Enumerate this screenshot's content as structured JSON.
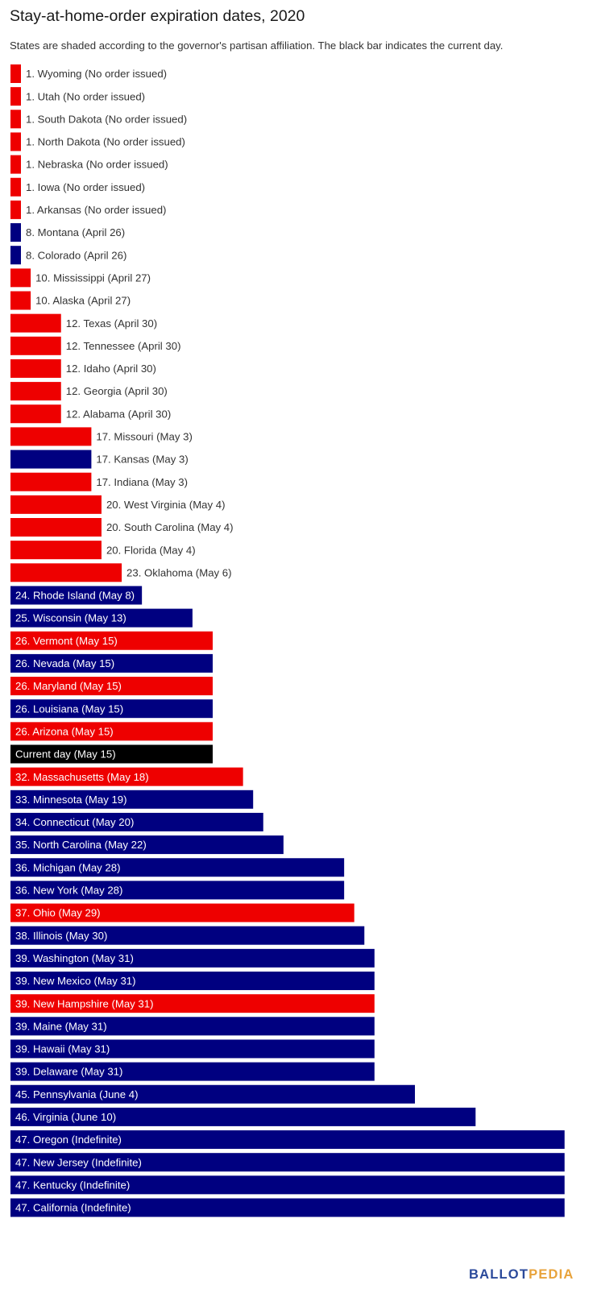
{
  "title": "Stay-at-home-order expiration dates, 2020",
  "subtitle": "States are shaded according to the governor's partisan affiliation. The black bar indicates the current day.",
  "logo": {
    "part1": "BALLOT",
    "part2": "PEDIA"
  },
  "colors": {
    "republican": "#ee0000",
    "democrat": "#000080",
    "current_day": "#000000",
    "label_inside": "#ffffff",
    "label_outside": "#333333",
    "logo_blue": "#2b4a9b",
    "logo_orange": "#e8a33b"
  },
  "chart_data": {
    "type": "bar",
    "orientation": "horizontal",
    "x_axis": "expiration date (April 25 = 0 days); Indefinite shown at full width",
    "legend": "none",
    "grid": false,
    "bars": [
      {
        "label": "1. Wyoming (No order issued)",
        "days": 0,
        "party": "R"
      },
      {
        "label": "1. Utah (No order issued)",
        "days": 0,
        "party": "R"
      },
      {
        "label": "1. South Dakota (No order issued)",
        "days": 0,
        "party": "R"
      },
      {
        "label": "1. North Dakota (No order issued)",
        "days": 0,
        "party": "R"
      },
      {
        "label": "1. Nebraska (No order issued)",
        "days": 0,
        "party": "R"
      },
      {
        "label": "1. Iowa (No order issued)",
        "days": 0,
        "party": "R"
      },
      {
        "label": "1. Arkansas (No order issued)",
        "days": 0,
        "party": "R"
      },
      {
        "label": "8. Montana (April 26)",
        "days": 1,
        "party": "D"
      },
      {
        "label": "8. Colorado (April 26)",
        "days": 1,
        "party": "D"
      },
      {
        "label": "10. Mississippi (April 27)",
        "days": 2,
        "party": "R"
      },
      {
        "label": "10. Alaska (April 27)",
        "days": 2,
        "party": "R"
      },
      {
        "label": "12. Texas (April 30)",
        "days": 5,
        "party": "R"
      },
      {
        "label": "12. Tennessee (April 30)",
        "days": 5,
        "party": "R"
      },
      {
        "label": "12. Idaho (April 30)",
        "days": 5,
        "party": "R"
      },
      {
        "label": "12. Georgia (April 30)",
        "days": 5,
        "party": "R"
      },
      {
        "label": "12. Alabama (April 30)",
        "days": 5,
        "party": "R"
      },
      {
        "label": "17. Missouri (May 3)",
        "days": 8,
        "party": "R"
      },
      {
        "label": "17. Kansas (May 3)",
        "days": 8,
        "party": "D"
      },
      {
        "label": "17. Indiana (May 3)",
        "days": 8,
        "party": "R"
      },
      {
        "label": "20. West Virginia (May 4)",
        "days": 9,
        "party": "R"
      },
      {
        "label": "20. South Carolina (May 4)",
        "days": 9,
        "party": "R"
      },
      {
        "label": "20. Florida (May 4)",
        "days": 9,
        "party": "R"
      },
      {
        "label": "23. Oklahoma (May 6)",
        "days": 11,
        "party": "R"
      },
      {
        "label": "24. Rhode Island (May 8)",
        "days": 13,
        "party": "D"
      },
      {
        "label": "25. Wisconsin (May 13)",
        "days": 18,
        "party": "D"
      },
      {
        "label": "26. Vermont (May 15)",
        "days": 20,
        "party": "R"
      },
      {
        "label": "26. Nevada (May 15)",
        "days": 20,
        "party": "D"
      },
      {
        "label": "26. Maryland (May 15)",
        "days": 20,
        "party": "R"
      },
      {
        "label": "26. Louisiana (May 15)",
        "days": 20,
        "party": "D"
      },
      {
        "label": "26. Arizona (May 15)",
        "days": 20,
        "party": "R"
      },
      {
        "label": "Current day (May 15)",
        "days": 20,
        "party": "current"
      },
      {
        "label": "32. Massachusetts (May 18)",
        "days": 23,
        "party": "R"
      },
      {
        "label": "33. Minnesota (May 19)",
        "days": 24,
        "party": "D"
      },
      {
        "label": "34. Connecticut (May 20)",
        "days": 25,
        "party": "D"
      },
      {
        "label": "35. North Carolina (May 22)",
        "days": 27,
        "party": "D"
      },
      {
        "label": "36. Michigan (May 28)",
        "days": 33,
        "party": "D"
      },
      {
        "label": "36. New York (May 28)",
        "days": 33,
        "party": "D"
      },
      {
        "label": "37. Ohio (May 29)",
        "days": 34,
        "party": "R"
      },
      {
        "label": "38. Illinois (May 30)",
        "days": 35,
        "party": "D"
      },
      {
        "label": "39. Washington (May 31)",
        "days": 36,
        "party": "D"
      },
      {
        "label": "39. New Mexico (May 31)",
        "days": 36,
        "party": "D"
      },
      {
        "label": "39. New Hampshire (May 31)",
        "days": 36,
        "party": "R"
      },
      {
        "label": "39. Maine (May 31)",
        "days": 36,
        "party": "D"
      },
      {
        "label": "39. Hawaii (May 31)",
        "days": 36,
        "party": "D"
      },
      {
        "label": "39. Delaware (May 31)",
        "days": 36,
        "party": "D"
      },
      {
        "label": "45. Pennsylvania (June 4)",
        "days": 40,
        "party": "D"
      },
      {
        "label": "46. Virginia (June 10)",
        "days": 46,
        "party": "D"
      },
      {
        "label": "47. Oregon (Indefinite)",
        "days": 54.8,
        "party": "D"
      },
      {
        "label": "47. New Jersey (Indefinite)",
        "days": 54.8,
        "party": "D"
      },
      {
        "label": "47. Kentucky (Indefinite)",
        "days": 54.8,
        "party": "D"
      },
      {
        "label": "47. California (Indefinite)",
        "days": 54.8,
        "party": "D"
      }
    ]
  }
}
